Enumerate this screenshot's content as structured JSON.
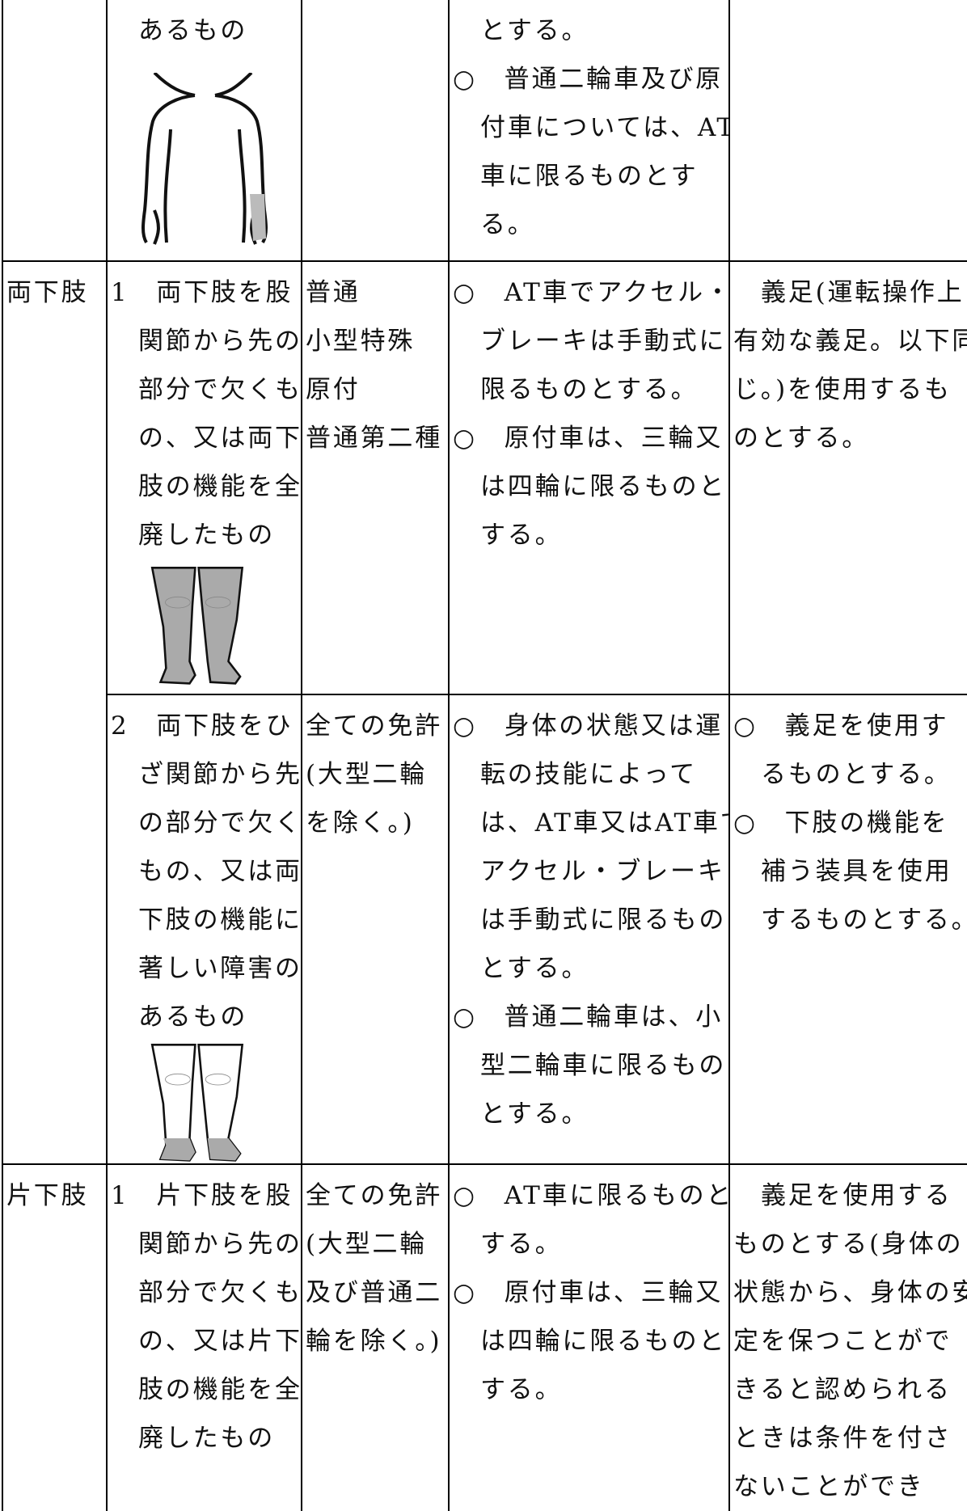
{
  "table": {
    "rows": [
      {
        "cells": [
          [],
          [
            [
              "あるもの"
            ]
          ],
          [],
          [
            [
              "とする。"
            ],
            [
              "○　普通二輪車及び原",
              "付車については、AT",
              "車に限るものとす",
              "る。"
            ]
          ],
          []
        ]
      },
      {
        "cells": [
          [
            [
              "両下肢"
            ]
          ],
          [
            [
              "1　両下肢を股",
              "関節から先の",
              "部分で欠くも",
              "の、又は両下",
              "肢の機能を全",
              "廃したもの"
            ]
          ],
          [
            [
              "普通"
            ],
            [
              "小型特殊"
            ],
            [
              "原付"
            ],
            [
              "普通第二種"
            ]
          ],
          [
            [
              "○　AT車でアクセル・",
              "ブレーキは手動式に",
              "限るものとする。"
            ],
            [
              "○　原付車は、三輪又",
              "は四輪に限るものと",
              "する。"
            ]
          ],
          [
            [
              "義足(運転操作上",
              "有効な義足。以下同",
              "じ。)を使用するも",
              "のとする。"
            ]
          ]
        ]
      },
      {
        "cells": [
          [
            [
              "2　両下肢をひ",
              "ざ関節から先",
              "の部分で欠く",
              "もの、又は両",
              "下肢の機能に",
              "著しい障害の",
              "あるもの"
            ]
          ],
          [
            [
              "全ての免許",
              "(大型二輪",
              "を除く。)"
            ]
          ],
          [
            [
              "○　身体の状態又は運",
              "転の技能によって",
              "は、AT車又はAT車で",
              "アクセル・ブレーキ",
              "は手動式に限るもの",
              "とする。"
            ],
            [
              "○　普通二輪車は、小",
              "型二輪車に限るもの",
              "とする。"
            ]
          ],
          [
            [
              "○　義足を使用す",
              "るものとする。"
            ],
            [
              "○　下肢の機能を",
              "補う装具を使用",
              "するものとする。"
            ]
          ]
        ]
      },
      {
        "cells": [
          [
            [
              "片下肢"
            ]
          ],
          [
            [
              "1　片下肢を股",
              "関節から先の",
              "部分で欠くも",
              "の、又は片下",
              "肢の機能を全",
              "廃したもの"
            ]
          ],
          [
            [
              "全ての免許",
              "(大型二輪",
              "及び普通二",
              "輪を除く。)"
            ]
          ],
          [
            [
              "○　AT車に限るものと",
              "する。"
            ],
            [
              "○　原付車は、三輪又",
              "は四輪に限るものと",
              "する。"
            ]
          ],
          [
            [
              "義足を使用する",
              "ものとする(身体の",
              "状態から、身体の安",
              "定を保つことがで",
              "きると認められる",
              "ときは条件を付さ",
              "ないことができ"
            ]
          ]
        ]
      }
    ]
  }
}
